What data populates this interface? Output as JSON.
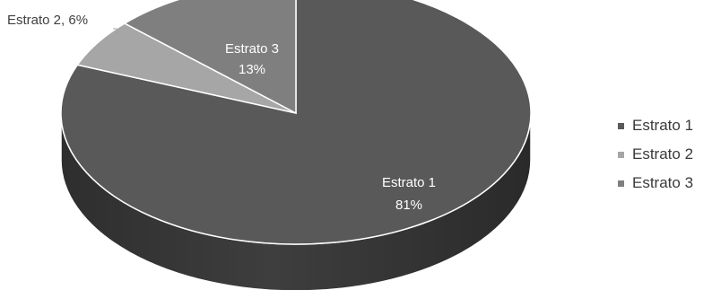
{
  "chart_data": {
    "type": "pie",
    "title": "",
    "categories": [
      "Estrato 1",
      "Estrato 2",
      "Estrato 3"
    ],
    "values": [
      81,
      6,
      13
    ],
    "unit": "%",
    "data_labels": [
      {
        "name": "Estrato 1",
        "value": "81%"
      },
      {
        "name": "Estrato 2",
        "text": "Estrato 2, 6%"
      },
      {
        "name": "Estrato 3",
        "value": "13%"
      }
    ],
    "colors": [
      "#595959",
      "#a6a6a6",
      "#7f7f7f"
    ],
    "legend_position": "right",
    "style": "3d"
  },
  "legend": {
    "items": [
      {
        "label": "Estrato 1",
        "color": "#595959"
      },
      {
        "label": "Estrato 2",
        "color": "#a6a6a6"
      },
      {
        "label": "Estrato 3",
        "color": "#7f7f7f"
      }
    ]
  }
}
